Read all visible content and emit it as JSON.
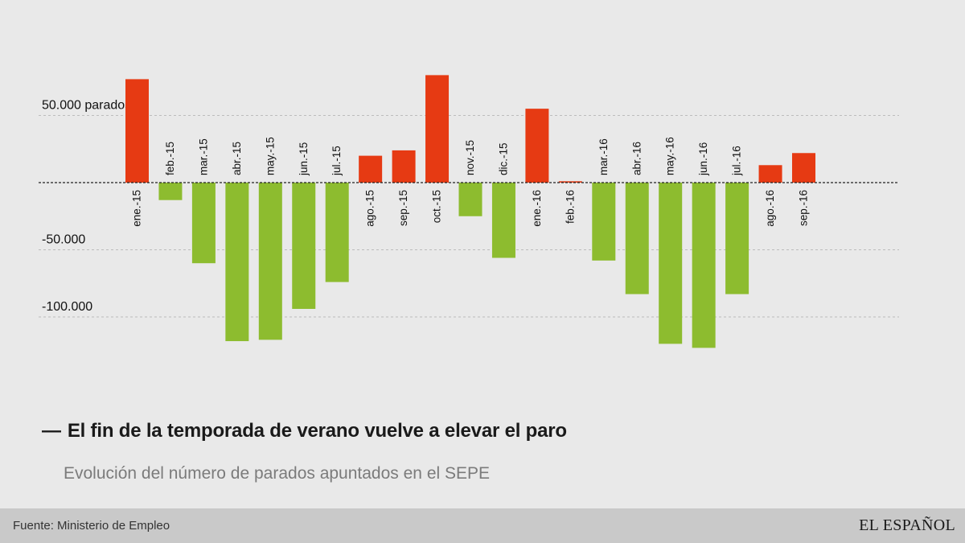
{
  "chart_data": {
    "type": "bar",
    "categories": [
      "ene.-15",
      "feb.-15",
      "mar.-15",
      "abr.-15",
      "may.-15",
      "jun.-15",
      "jul.-15",
      "ago.-15",
      "sep.-15",
      "oct.-15",
      "nov.-15",
      "dic.-15",
      "ene.-16",
      "feb.-16",
      "mar.-16",
      "abr.-16",
      "may.-16",
      "jun.-16",
      "jul.-16",
      "ago.-16",
      "sep.-16"
    ],
    "values": [
      77000,
      -13000,
      -60000,
      -118000,
      -117000,
      -94000,
      -74000,
      20000,
      24000,
      80000,
      -25000,
      -56000,
      55000,
      1000,
      -58000,
      -83000,
      -120000,
      -123000,
      -83000,
      13000,
      22000
    ],
    "ylim": [
      -170000,
      80000
    ],
    "y_ticks": [
      {
        "value": 50000,
        "label": "50.000 parados"
      },
      {
        "value": -50000,
        "label": "-50.000"
      },
      {
        "value": -100000,
        "label": "-100.000"
      }
    ],
    "grid": true,
    "colors": {
      "positive": "#e63a13",
      "negative": "#8dbc2f",
      "grid": "#bcbcbc",
      "zero_line": "#222222"
    }
  },
  "title": "El fin de la temporada de verano vuelve a elevar el paro",
  "title_prefix": "—",
  "subtitle": "Evolución del número de parados apuntados en el SEPE",
  "footer": {
    "source": "Fuente: Ministerio de Empleo",
    "logo": "EL ESPAÑOL"
  }
}
